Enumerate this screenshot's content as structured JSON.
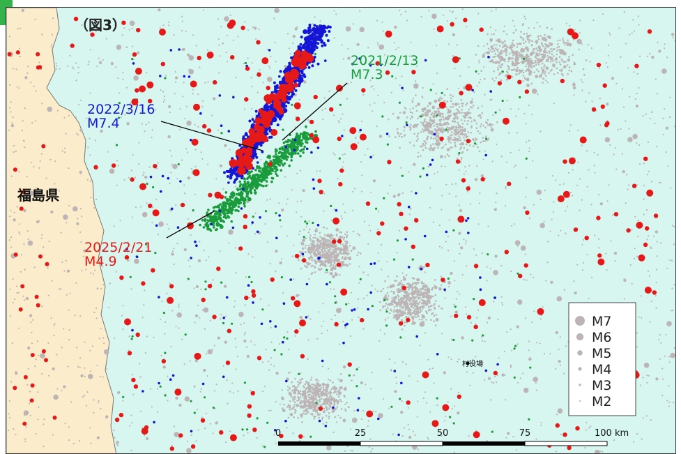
{
  "figure_label": "（図3）",
  "prefecture_label": "福島県",
  "village_label": "村役場",
  "events": [
    {
      "date": "2021/2/13",
      "mag": "M7.3",
      "color": "#1a9b3c"
    },
    {
      "date": "2022/3/16",
      "mag": "M7.4",
      "color": "#1515d6"
    },
    {
      "date": "2025/2/21",
      "mag": "M4.9",
      "color": "#e61919"
    }
  ],
  "scale_bar": {
    "ticks": [
      "0",
      "25",
      "50",
      "75",
      "100 km"
    ]
  },
  "legend": {
    "items": [
      "M7",
      "M6",
      "M5",
      "M4",
      "M3",
      "M2"
    ]
  },
  "colors": {
    "sea": "#d6f6ef",
    "land": "#fbeccb",
    "background_quakes": "#bdb5b5",
    "series_2021": "#1a9b3c",
    "series_2022": "#1515d6",
    "series_2025": "#e61919"
  }
}
